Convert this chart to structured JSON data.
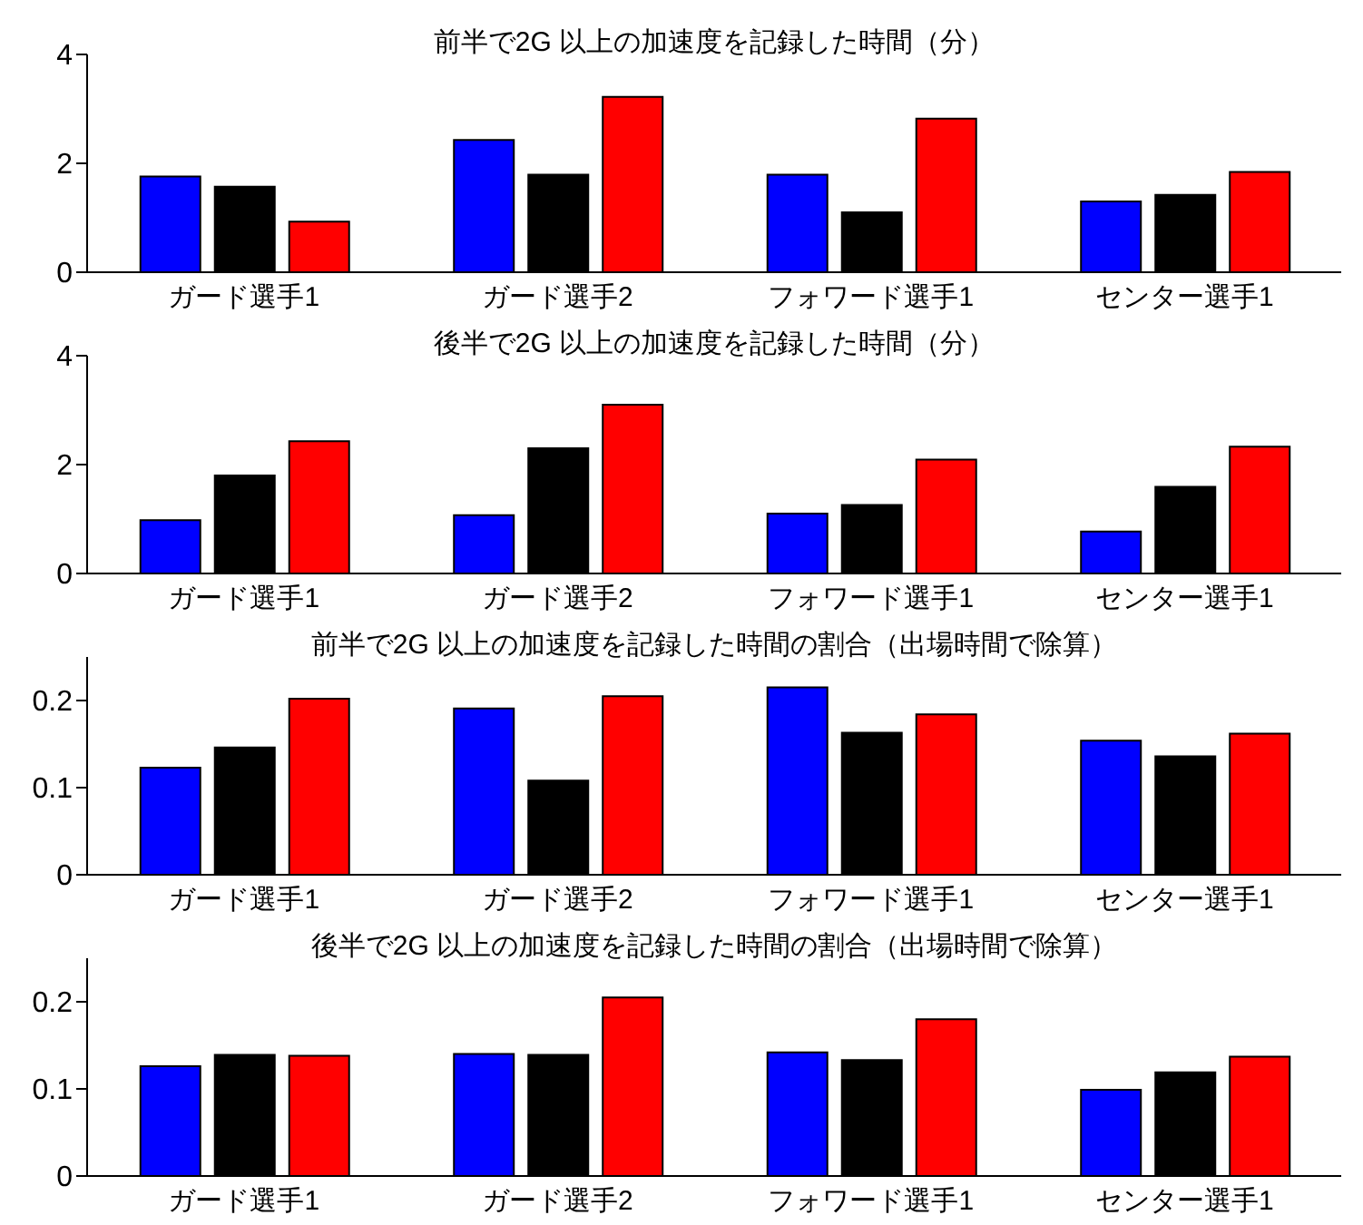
{
  "chart_data": [
    {
      "type": "bar",
      "title": "前半で2G 以上の加速度を記録した時間（分）",
      "categories": [
        "ガード選手1",
        "ガード選手2",
        "フォワード選手1",
        "センター選手1"
      ],
      "ylim": [
        0,
        4
      ],
      "yticks": [
        0,
        2,
        4
      ],
      "series": [
        {
          "color": "#0000ff",
          "values": [
            1.76,
            2.43,
            1.79,
            1.3
          ]
        },
        {
          "color": "#000000",
          "values": [
            1.57,
            1.79,
            1.1,
            1.42
          ]
        },
        {
          "color": "#ff0000",
          "values": [
            0.93,
            3.22,
            2.82,
            1.84
          ]
        }
      ]
    },
    {
      "type": "bar",
      "title": "後半で2G 以上の加速度を記録した時間（分）",
      "categories": [
        "ガード選手1",
        "ガード選手2",
        "フォワード選手1",
        "センター選手1"
      ],
      "ylim": [
        0,
        4
      ],
      "yticks": [
        0,
        2,
        4
      ],
      "series": [
        {
          "color": "#0000ff",
          "values": [
            0.98,
            1.07,
            1.1,
            0.77
          ]
        },
        {
          "color": "#000000",
          "values": [
            1.8,
            2.3,
            1.26,
            1.59
          ]
        },
        {
          "color": "#ff0000",
          "values": [
            2.43,
            3.1,
            2.09,
            2.33
          ]
        }
      ]
    },
    {
      "type": "bar",
      "title": "前半で2G 以上の加速度を記録した時間の割合（出場時間で除算）",
      "categories": [
        "ガード選手1",
        "ガード選手2",
        "フォワード選手1",
        "センター選手1"
      ],
      "ylim": [
        0,
        0.25
      ],
      "yticks": [
        0,
        0.1,
        0.2
      ],
      "series": [
        {
          "color": "#0000ff",
          "values": [
            0.123,
            0.191,
            0.215,
            0.154
          ]
        },
        {
          "color": "#000000",
          "values": [
            0.146,
            0.108,
            0.163,
            0.136
          ]
        },
        {
          "color": "#ff0000",
          "values": [
            0.202,
            0.205,
            0.184,
            0.162
          ]
        }
      ]
    },
    {
      "type": "bar",
      "title": "後半で2G 以上の加速度を記録した時間の割合（出場時間で除算）",
      "categories": [
        "ガード選手1",
        "ガード選手2",
        "フォワード選手1",
        "センター選手1"
      ],
      "ylim": [
        0,
        0.25
      ],
      "yticks": [
        0,
        0.1,
        0.2
      ],
      "series": [
        {
          "color": "#0000ff",
          "values": [
            0.126,
            0.14,
            0.142,
            0.099
          ]
        },
        {
          "color": "#000000",
          "values": [
            0.139,
            0.139,
            0.133,
            0.119
          ]
        },
        {
          "color": "#ff0000",
          "values": [
            0.138,
            0.205,
            0.18,
            0.137
          ]
        }
      ]
    }
  ]
}
